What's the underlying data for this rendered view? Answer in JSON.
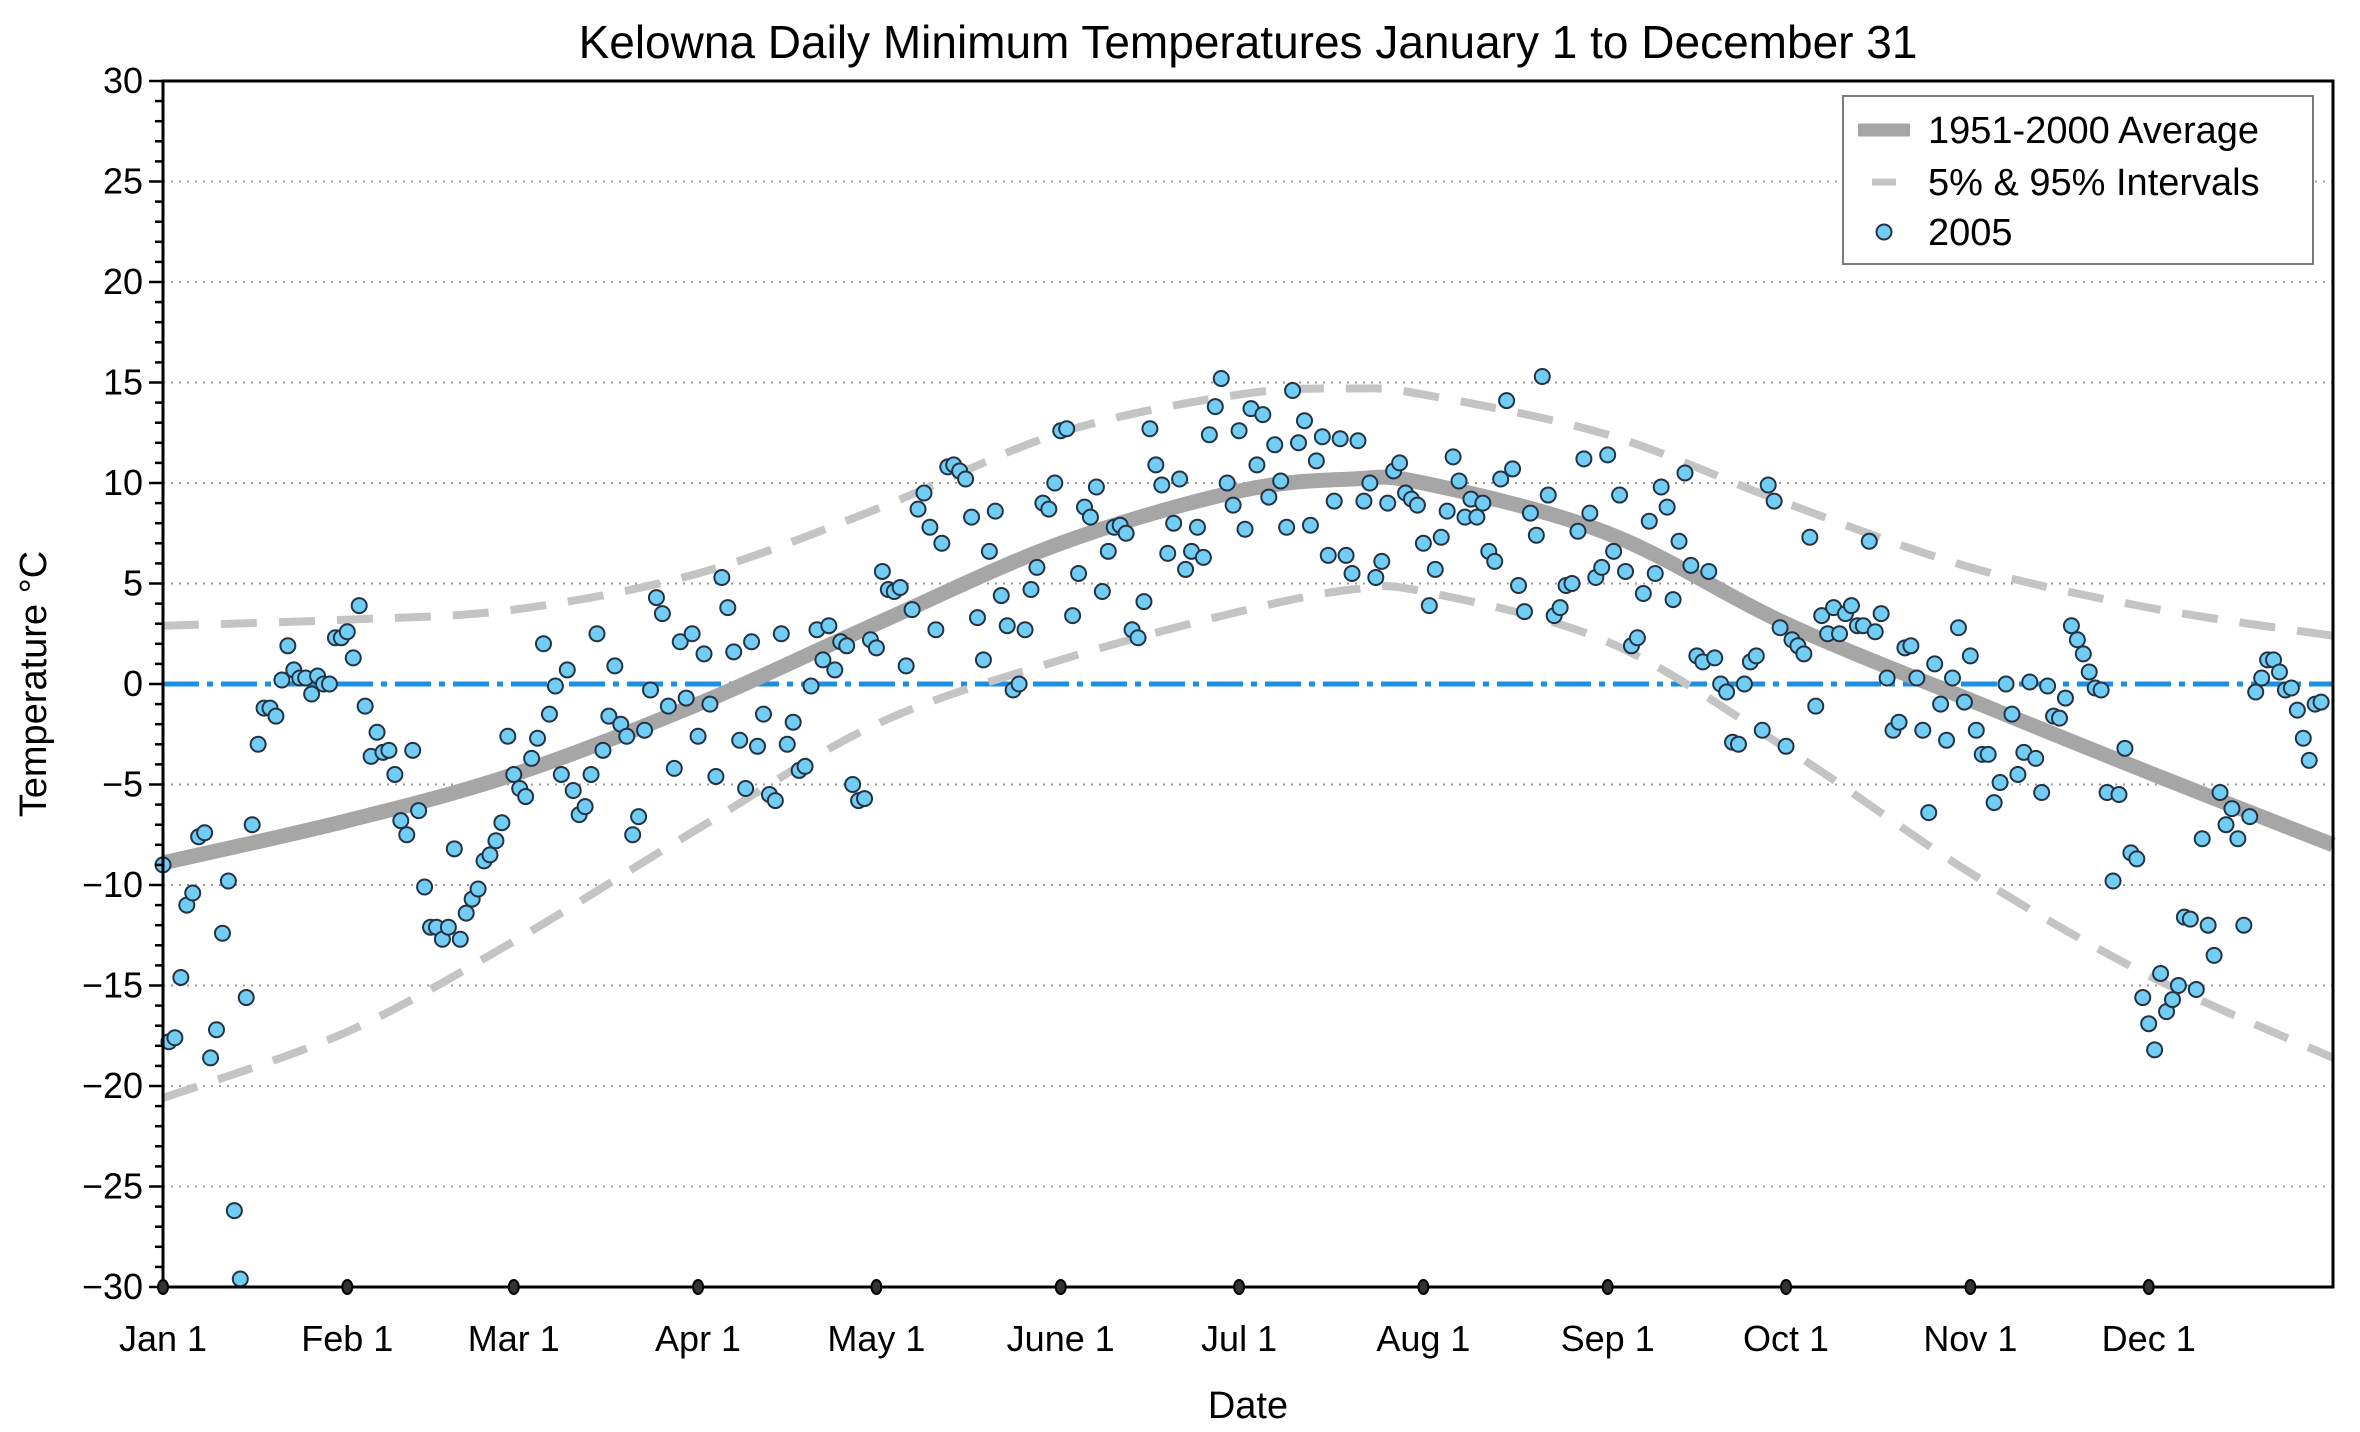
{
  "chart_data": {
    "type": "scatter",
    "title": "Kelowna Daily Minimum Temperatures January 1 to December 31",
    "xlabel": "Date",
    "ylabel": "Temperature °C",
    "ylim": [
      -30,
      30
    ],
    "xlim": [
      0,
      365
    ],
    "yticks": [
      30,
      25,
      20,
      15,
      10,
      5,
      0,
      -5,
      -10,
      -15,
      -20,
      -25,
      -30
    ],
    "ytick_labels": [
      "30",
      "25",
      "20",
      "15",
      "10",
      "5",
      "0",
      "−5",
      "−10",
      "−15",
      "−20",
      "−25",
      "−30"
    ],
    "xticks": [
      0,
      31,
      59,
      90,
      120,
      151,
      181,
      212,
      243,
      273,
      304,
      334
    ],
    "xtick_labels": [
      "Jan 1",
      "Feb 1",
      "Mar 1",
      "Apr 1",
      "May 1",
      "June 1",
      "Jul 1",
      "Aug 1",
      "Sep 1",
      "Oct 1",
      "Nov 1",
      "Dec 1"
    ],
    "grid": true,
    "legend_position": "top-right",
    "legend": [
      {
        "label": "1951-2000 Average",
        "style": "thick-solid",
        "color": "#a6a6a6"
      },
      {
        "label": "5% & 95% Intervals",
        "style": "dashed",
        "color": "#c4c4c4"
      },
      {
        "label": "2005",
        "style": "marker",
        "color": "#72cdf4"
      }
    ],
    "zero_line_color": "#1a8fe3",
    "curves": {
      "average": {
        "day": [
          0,
          31,
          59,
          90,
          120,
          151,
          181,
          200,
          212,
          243,
          273,
          304,
          334,
          365
        ],
        "value": [
          -8.9,
          -6.8,
          -4.5,
          -1.0,
          3.0,
          7.0,
          9.6,
          10.2,
          10.0,
          7.5,
          3.0,
          -0.8,
          -4.4,
          -8.0
        ]
      },
      "p95": {
        "day": [
          0,
          31,
          59,
          90,
          120,
          151,
          181,
          200,
          212,
          243,
          273,
          304,
          334,
          365
        ],
        "value": [
          2.9,
          3.2,
          3.7,
          5.5,
          8.7,
          12.5,
          14.4,
          14.7,
          14.4,
          12.4,
          9.0,
          5.8,
          3.8,
          2.4
        ]
      },
      "p5": {
        "day": [
          0,
          31,
          59,
          90,
          120,
          151,
          181,
          200,
          212,
          243,
          273,
          304,
          334,
          365
        ],
        "value": [
          -20.6,
          -17.3,
          -12.8,
          -7.2,
          -2.0,
          1.2,
          3.6,
          4.7,
          4.6,
          2.1,
          -3.2,
          -9.4,
          -14.5,
          -18.6
        ]
      }
    },
    "series": [
      {
        "name": "2005",
        "values": [
          -9,
          -17.8,
          -17.6,
          -14.6,
          -11,
          -10.4,
          -7.6,
          -7.4,
          -18.6,
          -17.2,
          -12.4,
          -9.8,
          -26.2,
          -29.6,
          -15.6,
          -7,
          -3,
          -1.2,
          -1.2,
          -1.6,
          0.2,
          1.9,
          0.7,
          0.3,
          0.3,
          -0.5,
          0.4,
          0,
          0,
          2.3,
          2.3,
          2.6,
          1.3,
          3.9,
          -1.1,
          -3.6,
          -2.4,
          -3.4,
          -3.3,
          -4.5,
          -6.8,
          -7.5,
          -3.3,
          -6.3,
          -10.1,
          -12.1,
          -12.1,
          -12.7,
          -12.1,
          -8.2,
          -12.7,
          -11.4,
          -10.7,
          -10.2,
          -8.8,
          -8.5,
          -7.8,
          -6.9,
          -2.6,
          -4.5,
          -5.2,
          -5.6,
          -3.7,
          -2.7,
          2,
          -1.5,
          -0.1,
          -4.5,
          0.7,
          -5.3,
          -6.5,
          -6.1,
          -4.5,
          2.5,
          -3.3,
          -1.6,
          0.9,
          -2,
          -2.6,
          -7.5,
          -6.6,
          -2.3,
          -0.3,
          4.3,
          3.5,
          -1.1,
          -4.2,
          2.1,
          -0.7,
          2.5,
          -2.6,
          1.5,
          -1,
          -4.6,
          5.3,
          3.8,
          1.6,
          -2.8,
          -5.2,
          2.1,
          -3.1,
          -1.5,
          -5.5,
          -5.8,
          2.5,
          -3,
          -1.9,
          -4.3,
          -4.1,
          -0.1,
          2.7,
          1.2,
          2.9,
          0.7,
          2.1,
          1.9,
          -5,
          -5.8,
          -5.7,
          2.2,
          1.8,
          5.6,
          4.7,
          4.6,
          4.8,
          0.9,
          3.7,
          8.7,
          9.5,
          7.8,
          2.7,
          7,
          10.8,
          10.9,
          10.6,
          10.2,
          8.3,
          3.3,
          1.2,
          6.6,
          8.6,
          4.4,
          2.9,
          -0.3,
          0,
          2.7,
          4.7,
          5.8,
          9,
          8.7,
          10,
          12.6,
          12.7,
          3.4,
          5.5,
          8.8,
          8.3,
          9.8,
          4.6,
          6.6,
          7.8,
          7.9,
          7.5,
          2.7,
          2.3,
          4.1,
          12.7,
          10.9,
          9.9,
          6.5,
          8,
          10.2,
          5.7,
          6.6,
          7.8,
          6.3,
          12.4,
          13.8,
          15.2,
          10,
          8.9,
          12.6,
          7.7,
          13.7,
          10.9,
          13.4,
          9.3,
          11.9,
          10.1,
          7.8,
          14.6,
          12,
          13.1,
          7.9,
          11.1,
          12.3,
          6.4,
          9.1,
          12.2,
          6.4,
          5.5,
          12.1,
          9.1,
          10,
          5.3,
          6.1,
          9,
          10.6,
          11,
          9.5,
          9.2,
          8.9,
          7,
          3.9,
          5.7,
          7.3,
          8.6,
          11.3,
          10.1,
          8.3,
          9.2,
          8.3,
          9,
          6.6,
          6.1,
          10.2,
          14.1,
          10.7,
          4.9,
          3.6,
          8.5,
          7.4,
          15.3,
          9.4,
          3.4,
          3.8,
          4.9,
          5,
          7.6,
          11.2,
          8.5,
          5.3,
          5.8,
          11.4,
          6.6,
          9.4,
          5.6,
          1.9,
          2.3,
          4.5,
          8.1,
          5.5,
          9.8,
          8.8,
          4.2,
          7.1,
          10.5,
          5.9,
          1.4,
          1.1,
          5.6,
          1.3,
          0,
          -0.4,
          -2.9,
          -3,
          0,
          1.1,
          1.4,
          -2.3,
          9.9,
          9.1,
          2.8,
          -3.1,
          2.2,
          1.9,
          1.5,
          7.3,
          -1.1,
          3.4,
          2.5,
          3.8,
          2.5,
          3.5,
          3.9,
          2.9,
          2.9,
          7.1,
          2.6,
          3.5,
          0.3,
          -2.3,
          -1.9,
          1.8,
          1.9,
          0.3,
          -2.3,
          -6.4,
          1,
          -1,
          -2.8,
          0.3,
          2.8,
          -0.9,
          1.4,
          -2.3,
          -3.5,
          -3.5,
          -5.9,
          -4.9,
          0,
          -1.5,
          -4.5,
          -3.4,
          0.1,
          -3.7,
          -5.4,
          -0.1,
          -1.6,
          -1.7,
          -0.7,
          2.9,
          2.2,
          1.5,
          0.6,
          -0.2,
          -0.3,
          -5.4,
          -9.8,
          -5.5,
          -3.2,
          -8.4,
          -8.7,
          -15.6,
          -16.9,
          -18.2,
          -14.4,
          -16.3,
          -15.7,
          -15,
          -11.6,
          -11.7,
          -15.2,
          -7.7,
          -12,
          -13.5,
          -5.4,
          -7,
          -6.2,
          -7.7,
          -12,
          -6.6,
          -0.4,
          0.3,
          1.2,
          1.2,
          0.6,
          -0.3,
          -0.2,
          -1.3,
          -2.7,
          -3.8,
          -1,
          -0.9
        ]
      }
    ]
  }
}
